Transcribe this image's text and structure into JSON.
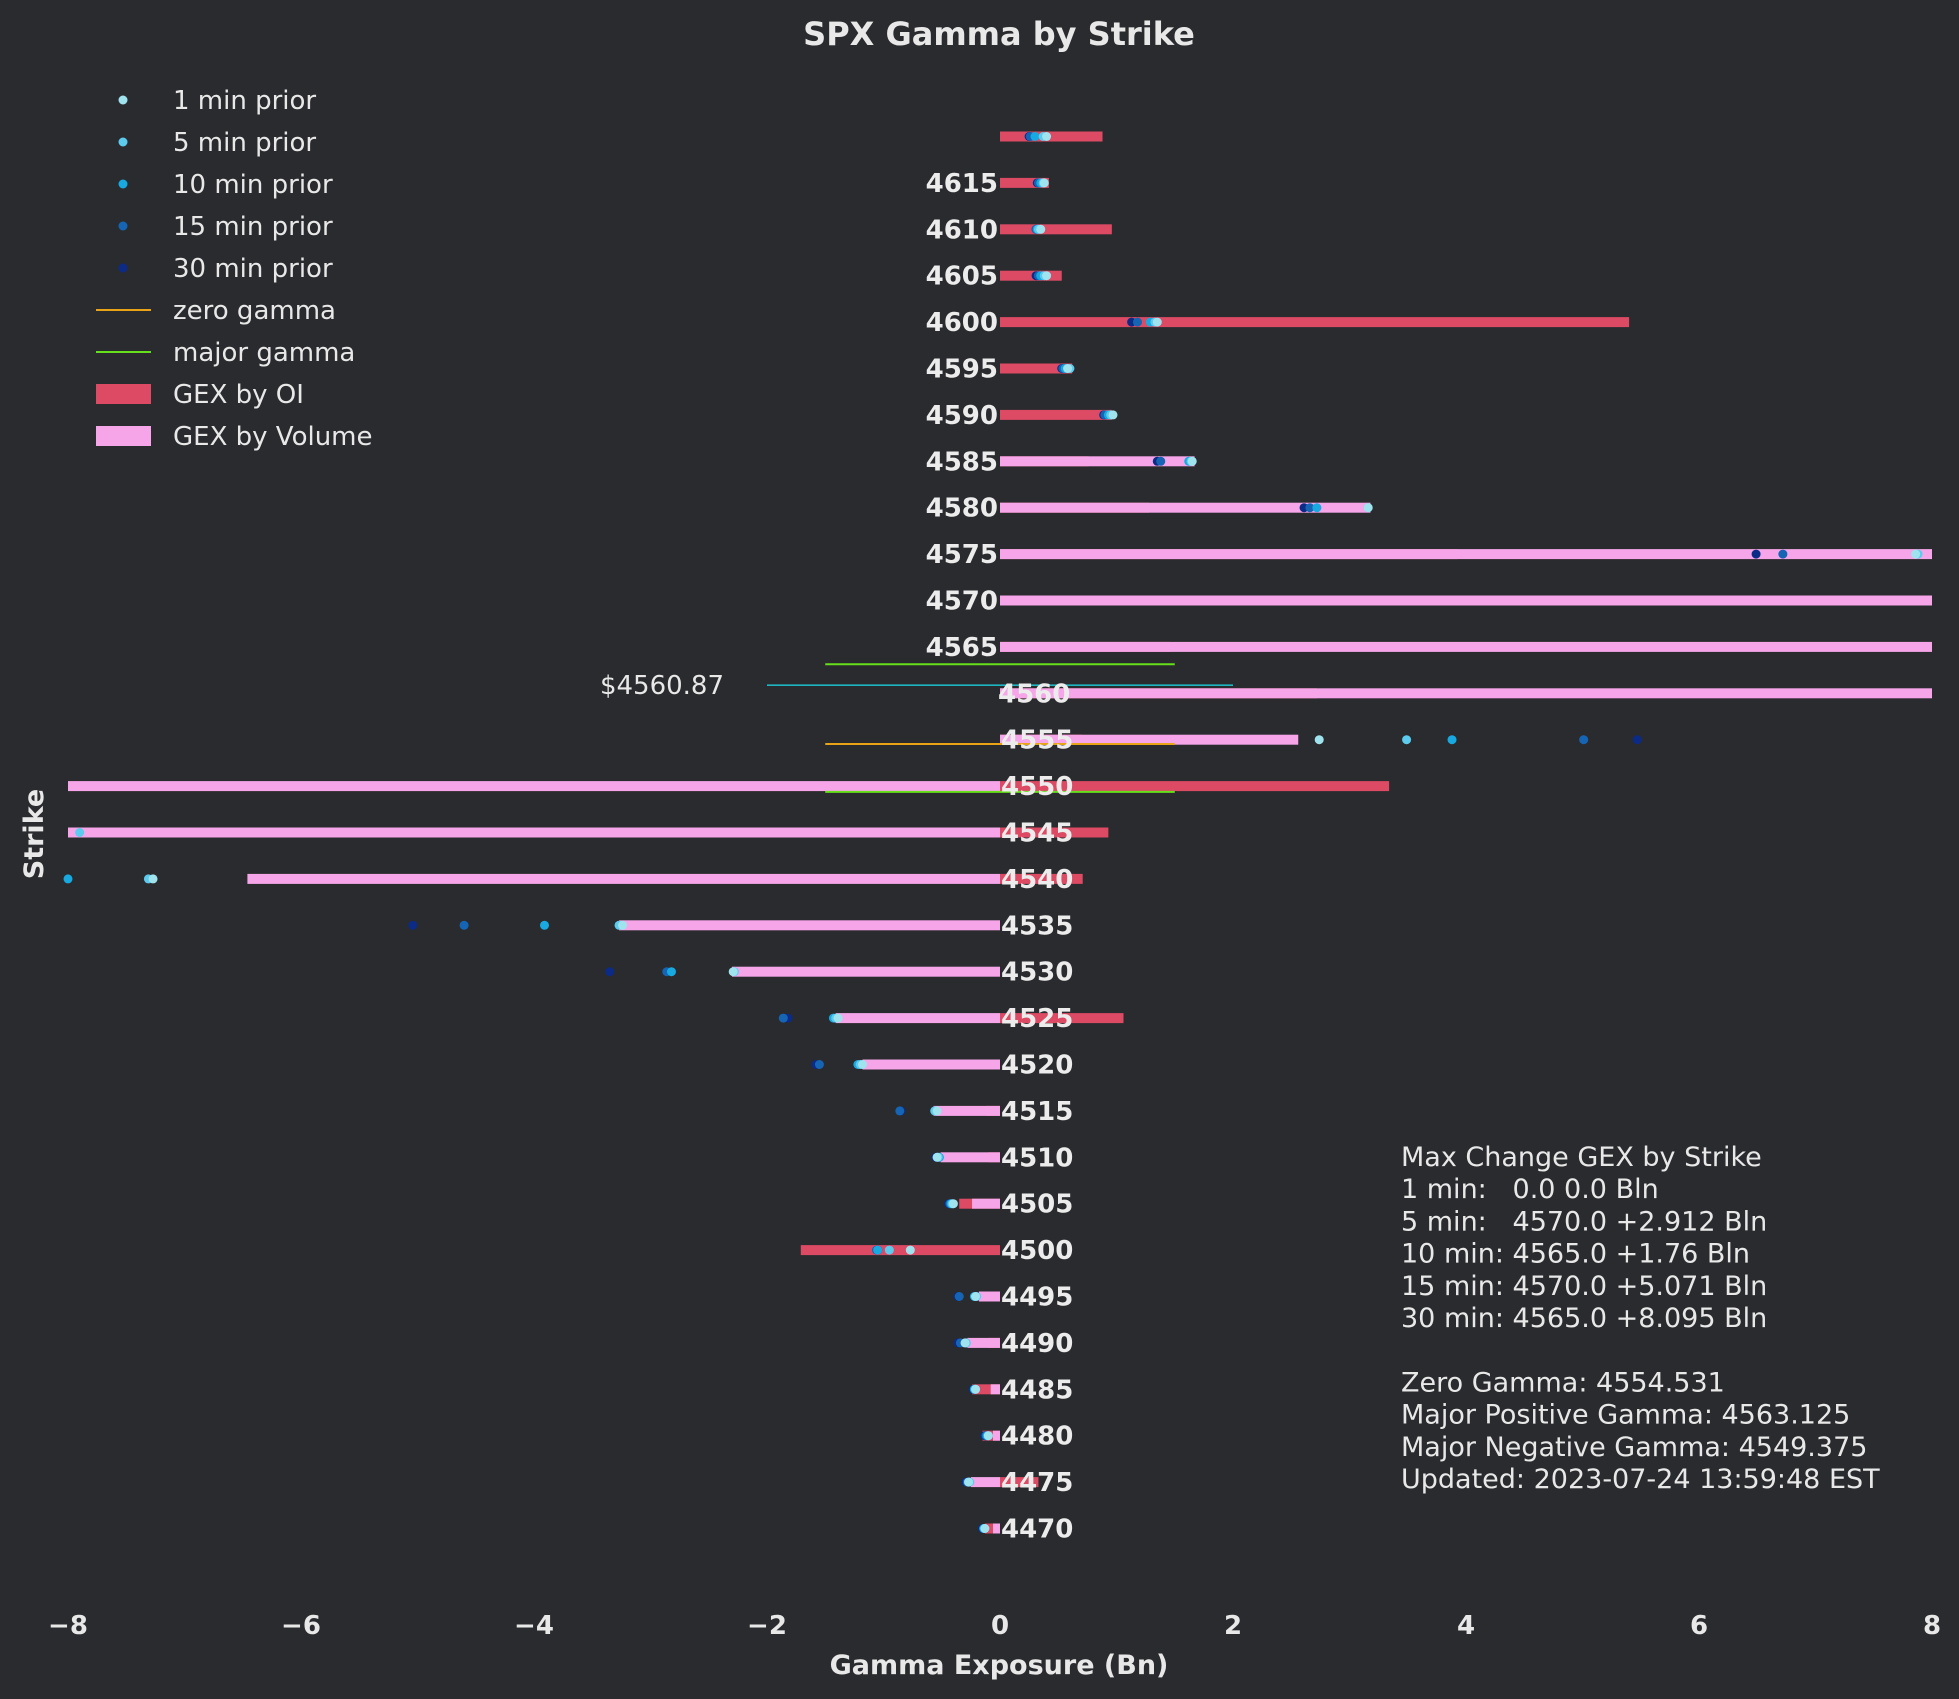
{
  "chart_data": {
    "type": "bar",
    "orientation": "horizontal",
    "title": "SPX Gamma by Strike",
    "xlabel": "Gamma Exposure (Bn)",
    "ylabel": "Strike",
    "xlim": [
      -8,
      8
    ],
    "xticks": [
      -8,
      -6,
      -4,
      -2,
      0,
      2,
      4,
      6,
      8
    ],
    "xtick_labels": [
      "−8",
      "−6",
      "−4",
      "−2",
      "0",
      "2",
      "4",
      "6",
      "8"
    ],
    "strikes": [
      "",
      "4615",
      "4610",
      "4605",
      "4600",
      "4595",
      "4590",
      "4585",
      "4580",
      "4575",
      "4570",
      "4565",
      "4560",
      "4555",
      "4550",
      "4545",
      "4540",
      "4535",
      "4530",
      "4525",
      "4520",
      "4515",
      "4510",
      "4505",
      "4500",
      "4495",
      "4490",
      "4485",
      "4480",
      "4475",
      "4470"
    ],
    "strike_colors": {
      "4570": "#1a8c1a",
      "4565": "#1a8c1a"
    },
    "series": [
      {
        "name": "GEX by OI",
        "color": "#dc4a64",
        "values": [
          0.88,
          0.42,
          0.96,
          0.53,
          5.4,
          0.62,
          0.96,
          0.76,
          1.28,
          3.93,
          2.34,
          1.46,
          2.72,
          0.7,
          3.34,
          0.93,
          0.71,
          0.0,
          0.0,
          1.06,
          -0.08,
          -0.12,
          -0.1,
          -0.35,
          -1.71,
          -0.18,
          -0.1,
          -0.24,
          -0.15,
          0.33,
          -0.13
        ]
      },
      {
        "name": "GEX by Volume",
        "color": "#f6a6e8",
        "values": [
          0,
          0,
          0,
          0,
          0,
          0,
          0,
          1.67,
          3.18,
          8.0,
          8.0,
          8.0,
          8.0,
          2.56,
          -8.0,
          -8.0,
          -6.46,
          -3.27,
          -2.3,
          -1.41,
          -1.18,
          -0.57,
          -0.51,
          -0.24,
          0,
          -0.18,
          -0.28,
          -0.08,
          -0.06,
          -0.25,
          -0.06
        ]
      }
    ],
    "prior_points": [
      {
        "name": "1 min prior",
        "color": "#9fe3ee",
        "values": [
          0.4,
          0.38,
          0.35,
          0.4,
          1.35,
          0.58,
          0.97,
          1.65,
          3.16,
          7.86,
          null,
          null,
          null,
          2.74,
          null,
          null,
          -7.27,
          -3.24,
          -2.29,
          -1.39,
          -1.18,
          -0.54,
          -0.54,
          -0.4,
          -0.77,
          -0.21,
          -0.3,
          -0.21,
          -0.1,
          -0.27,
          -0.13
        ]
      },
      {
        "name": "5 min prior",
        "color": "#5ccbee",
        "values": [
          0.37,
          0.37,
          0.33,
          0.38,
          1.33,
          0.6,
          0.95,
          1.64,
          3.16,
          7.88,
          null,
          null,
          null,
          3.49,
          null,
          -7.9,
          -7.31,
          -3.27,
          -2.28,
          -1.41,
          -1.2,
          -0.56,
          -0.53,
          -0.41,
          -0.95,
          -0.2,
          -0.29,
          -0.21,
          -0.1,
          -0.26,
          -0.13
        ]
      },
      {
        "name": "10 min prior",
        "color": "#17a9e0",
        "values": [
          0.3,
          0.35,
          0.32,
          0.35,
          1.29,
          0.56,
          0.93,
          1.62,
          2.72,
          null,
          null,
          null,
          null,
          3.88,
          null,
          null,
          -8.0,
          -3.91,
          -2.82,
          -1.43,
          -1.22,
          -0.56,
          -0.52,
          -0.42,
          -1.05,
          -0.22,
          -0.29,
          -0.22,
          -0.11,
          -0.27,
          -0.14
        ]
      },
      {
        "name": "15 min prior",
        "color": "#1565b4",
        "values": [
          0.26,
          0.33,
          0.31,
          0.33,
          1.18,
          0.54,
          0.9,
          1.38,
          2.66,
          6.72,
          null,
          null,
          null,
          5.01,
          null,
          null,
          null,
          -4.6,
          -2.86,
          -1.86,
          -1.55,
          -0.86,
          -0.54,
          -0.43,
          -1.06,
          -0.35,
          -0.34,
          -0.22,
          -0.12,
          -0.28,
          -0.14
        ]
      },
      {
        "name": "30 min prior",
        "color": "#0b2b86",
        "values": [
          0.25,
          0.32,
          0.31,
          0.31,
          1.13,
          0.53,
          0.89,
          1.35,
          2.61,
          6.49,
          null,
          null,
          null,
          5.47,
          null,
          null,
          null,
          -5.04,
          -3.35,
          -1.82,
          -1.58,
          -0.85,
          -0.55,
          -0.44,
          -1.05,
          -0.36,
          -0.36,
          -0.23,
          -0.13,
          -0.29,
          -0.15
        ]
      }
    ],
    "lines": {
      "zero_gamma": {
        "name": "zero gamma",
        "color": "#e8a317",
        "strike": 4554.531,
        "x_range": [
          -1.5,
          1.5
        ]
      },
      "major_gamma": {
        "name": "major gamma",
        "color": "#66e01a",
        "strikes": [
          4563.125,
          4549.375
        ],
        "x_range": [
          -1.5,
          1.5
        ]
      },
      "spot": {
        "label": "$4560.87",
        "color": "#1fb5c0",
        "strike": 4560.87,
        "x_range": [
          -2.0,
          2.0
        ]
      }
    },
    "legend": {
      "placement": "top-left",
      "entries": [
        {
          "label": "1 min prior",
          "kind": "dot",
          "color": "#9fe3ee"
        },
        {
          "label": "5 min prior",
          "kind": "dot",
          "color": "#5ccbee"
        },
        {
          "label": "10 min prior",
          "kind": "dot",
          "color": "#17a9e0"
        },
        {
          "label": "15 min prior",
          "kind": "dot",
          "color": "#1565b4"
        },
        {
          "label": "30 min prior",
          "kind": "dot",
          "color": "#0b2b86"
        },
        {
          "label": "zero gamma",
          "kind": "line",
          "color": "#e8a317"
        },
        {
          "label": "major gamma",
          "kind": "line",
          "color": "#66e01a"
        },
        {
          "label": "GEX by OI",
          "kind": "patch",
          "color": "#dc4a64"
        },
        {
          "label": "GEX by Volume",
          "kind": "patch",
          "color": "#f6a6e8"
        }
      ]
    },
    "info_lines": [
      "Max Change GEX by Strike",
      "1 min:   0.0 0.0 Bln",
      "5 min:   4570.0 +2.912 Bln",
      "10 min: 4565.0 +1.76 Bln",
      "15 min: 4570.0 +5.071 Bln",
      "30 min: 4565.0 +8.095 Bln",
      "",
      "Zero Gamma: 4554.531",
      "Major Positive Gamma: 4563.125",
      "Major Negative Gamma: 4549.375",
      "Updated: 2023-07-24 13:59:48 EST"
    ],
    "grid": false,
    "background": "#2a2b2e"
  }
}
